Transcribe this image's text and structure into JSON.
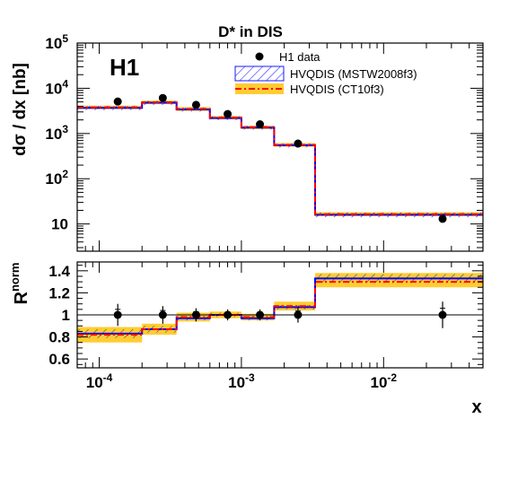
{
  "chart_data": [
    {
      "panel": "upper",
      "type": "line",
      "title": "D* in DIS",
      "experiment_label": "H1",
      "ylabel": "dσ / dx [nb]",
      "xscale": "log",
      "yscale": "log",
      "xlim": [
        7e-05,
        0.05
      ],
      "ylim": [
        2.5,
        100000
      ],
      "y_ticks": [
        "10",
        "10^2",
        "10^3",
        "10^4",
        "10^5"
      ],
      "grid": false,
      "legend": {
        "placement": "top-right",
        "entries": [
          {
            "label": "H1 data",
            "style": "marker",
            "color": "#000000"
          },
          {
            "label": "HVQDIS (MSTW2008f3)",
            "style": "hatched-band",
            "color": "#1a1aff"
          },
          {
            "label": "HVQDIS (CT10f3)",
            "style": "dashdot-band",
            "color": "#ff0000",
            "fill": "#ffcc33"
          }
        ]
      },
      "bin_edges": [
        7e-05,
        0.0002,
        0.00035,
        0.0006,
        0.001,
        0.0017,
        0.0033,
        0.05
      ],
      "data_points": [
        {
          "x": 0.000135,
          "y": 5100
        },
        {
          "x": 0.00028,
          "y": 6100
        },
        {
          "x": 0.00048,
          "y": 4300
        },
        {
          "x": 0.0008,
          "y": 2700
        },
        {
          "x": 0.00135,
          "y": 1600
        },
        {
          "x": 0.0025,
          "y": 600
        },
        {
          "x": 0.026,
          "y": 13
        }
      ],
      "series": [
        {
          "name": "HVQDIS (MSTW2008f3)",
          "values": [
            3700,
            4800,
            3400,
            2200,
            1350,
            550,
            16
          ],
          "band_low": [
            3300,
            4300,
            3050,
            1980,
            1220,
            490,
            14
          ],
          "band_high": [
            4100,
            5300,
            3750,
            2420,
            1480,
            610,
            18
          ]
        },
        {
          "name": "HVQDIS (CT10f3)",
          "values": [
            3800,
            4900,
            3500,
            2250,
            1380,
            560,
            16.5
          ],
          "band_low": [
            3450,
            4450,
            3150,
            2050,
            1250,
            510,
            14.8
          ],
          "band_high": [
            4150,
            5350,
            3850,
            2450,
            1500,
            615,
            18.2
          ]
        }
      ]
    },
    {
      "panel": "lower",
      "type": "line",
      "ylabel": "R^norm",
      "xlabel": "x",
      "xscale": "log",
      "xlim": [
        7e-05,
        0.05
      ],
      "ylim": [
        0.52,
        1.48
      ],
      "y_ticks": [
        "0.6",
        "0.8",
        "1",
        "1.2",
        "1.4"
      ],
      "x_ticks": [
        "10^-4",
        "10^-3",
        "10^-2"
      ],
      "reference_line": 1,
      "bin_edges": [
        7e-05,
        0.0002,
        0.00035,
        0.0006,
        0.001,
        0.0017,
        0.0033,
        0.05
      ],
      "data_points": [
        {
          "x": 0.000135,
          "y": 1.0,
          "err": 0.1
        },
        {
          "x": 0.00028,
          "y": 1.0,
          "err": 0.08
        },
        {
          "x": 0.00048,
          "y": 1.0,
          "err": 0.06
        },
        {
          "x": 0.0008,
          "y": 1.0,
          "err": 0.05
        },
        {
          "x": 0.00135,
          "y": 1.0,
          "err": 0.05
        },
        {
          "x": 0.0025,
          "y": 1.0,
          "err": 0.07
        },
        {
          "x": 0.026,
          "y": 1.0,
          "err": 0.12
        }
      ],
      "series": [
        {
          "name": "HVQDIS (MSTW2008f3)",
          "values": [
            0.83,
            0.87,
            0.97,
            1.0,
            0.97,
            1.07,
            1.33
          ],
          "band_low": [
            0.79,
            0.84,
            0.95,
            0.98,
            0.95,
            1.05,
            1.29
          ],
          "band_high": [
            0.87,
            0.9,
            0.99,
            1.02,
            0.99,
            1.09,
            1.37
          ]
        },
        {
          "name": "HVQDIS (CT10f3)",
          "values": [
            0.82,
            0.87,
            0.98,
            1.0,
            0.98,
            1.08,
            1.3
          ],
          "band_low": [
            0.75,
            0.82,
            0.94,
            0.97,
            0.95,
            1.04,
            1.25
          ],
          "band_high": [
            0.89,
            0.92,
            1.02,
            1.03,
            1.01,
            1.12,
            1.38
          ]
        }
      ]
    }
  ]
}
